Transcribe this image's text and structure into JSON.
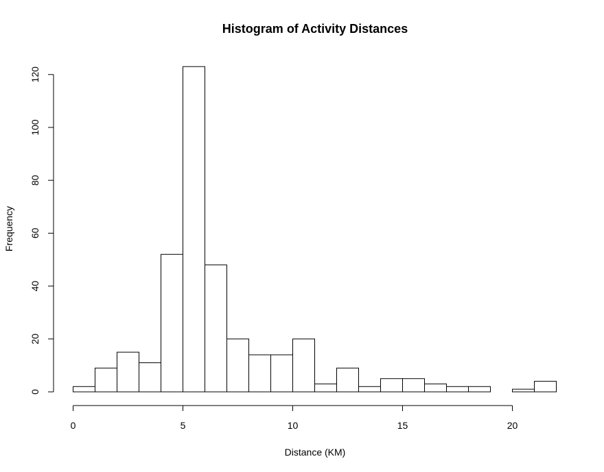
{
  "chart_data": {
    "type": "bar",
    "title": "Histogram of Activity Distances",
    "xlabel": "Distance (KM)",
    "ylabel": "Frequency",
    "bin_edges": [
      0,
      1,
      2,
      3,
      4,
      5,
      6,
      7,
      8,
      9,
      10,
      11,
      12,
      13,
      14,
      15,
      16,
      17,
      18,
      19,
      20,
      21,
      22
    ],
    "values": [
      2,
      9,
      15,
      11,
      52,
      123,
      48,
      20,
      14,
      14,
      20,
      3,
      9,
      2,
      5,
      5,
      3,
      2,
      2,
      0,
      1,
      4
    ],
    "xlim": [
      0,
      22
    ],
    "ylim": [
      0,
      120
    ],
    "x_ticks": [
      0,
      5,
      10,
      15,
      20
    ],
    "y_ticks": [
      0,
      20,
      40,
      60,
      80,
      100,
      120
    ],
    "x_tick_labels": [
      "0",
      "5",
      "10",
      "15",
      "20"
    ],
    "y_tick_labels": [
      "0",
      "20",
      "40",
      "60",
      "80",
      "100",
      "120"
    ],
    "grid": false,
    "colors": {
      "bar_fill": "#ffffff",
      "bar_stroke": "#000000"
    }
  }
}
